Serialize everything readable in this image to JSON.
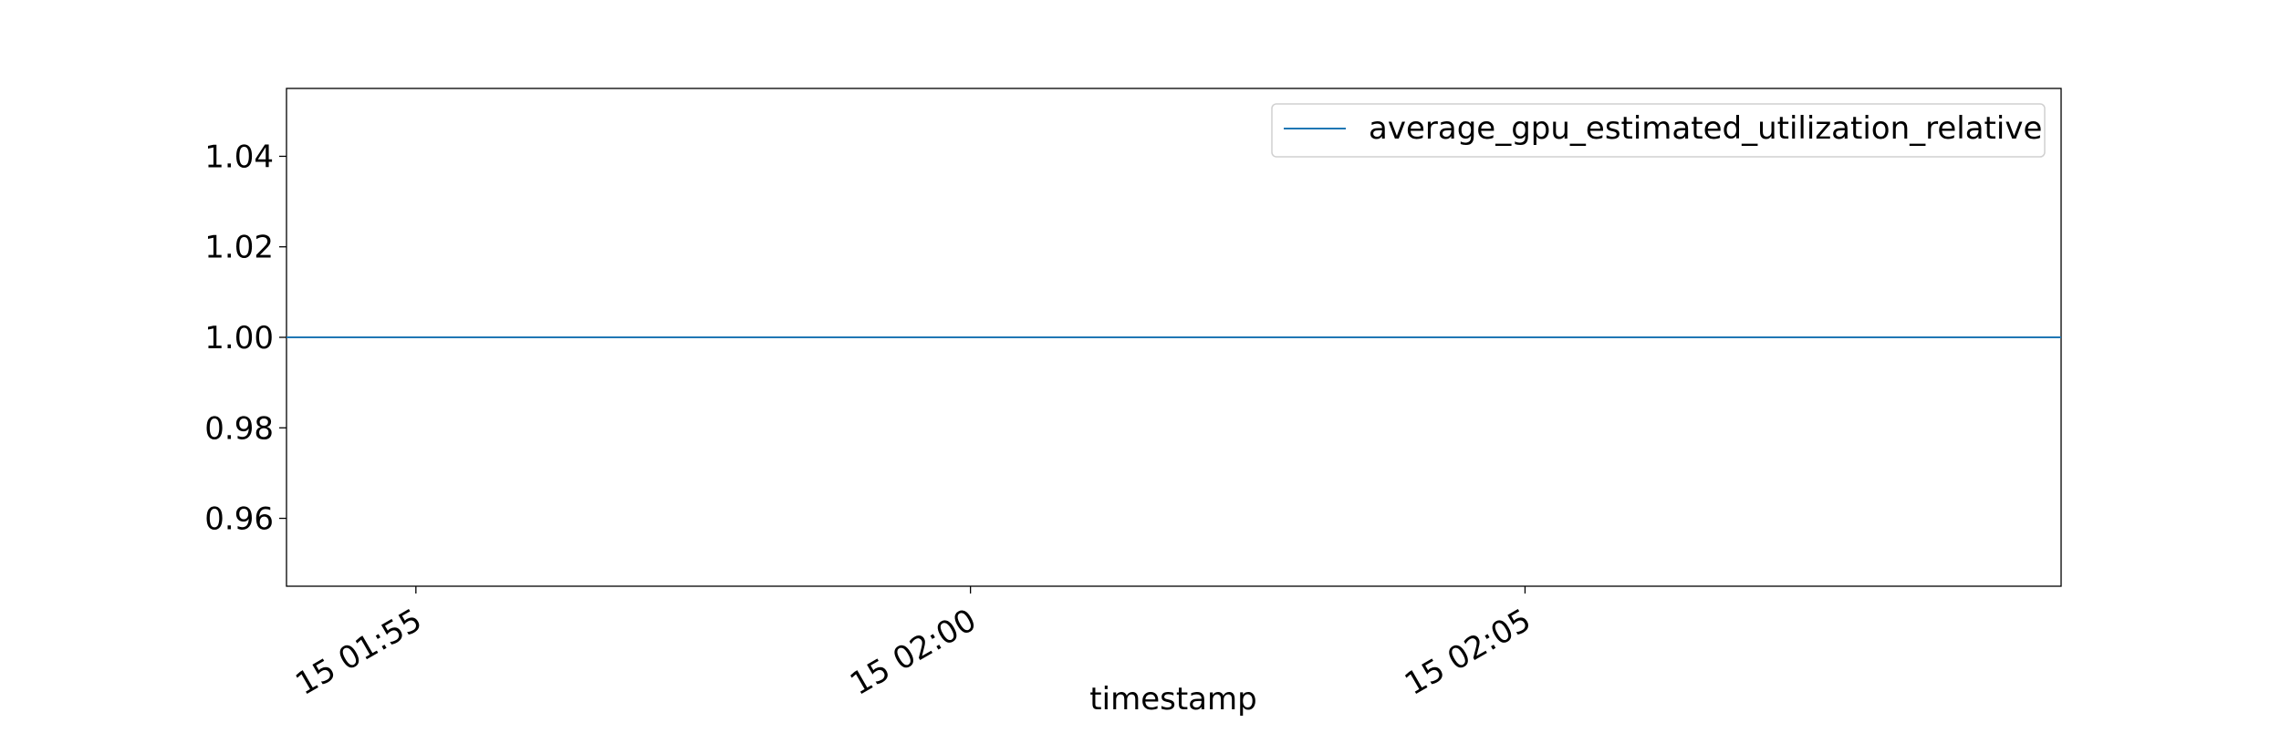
{
  "chart_data": {
    "type": "line",
    "title": "",
    "xlabel": "timestamp",
    "ylabel": "",
    "x_tick_labels": [
      "15 01:55",
      "15 02:00",
      "15 02:05"
    ],
    "y_tick_labels": [
      "0.96",
      "0.98",
      "1.00",
      "1.02",
      "1.04"
    ],
    "y_ticks": [
      0.96,
      0.98,
      1.0,
      1.02,
      1.04
    ],
    "ylim": [
      0.945,
      1.055
    ],
    "xlim": [
      "15 01:53:50",
      "15 02:09:50"
    ],
    "grid": false,
    "legend_position": "top-right",
    "series": [
      {
        "name": "average_gpu_estimated_utilization_relative",
        "color": "#1f77b4",
        "x": [
          "15 01:53:50",
          "15 02:09:50"
        ],
        "values": [
          1.0,
          1.0
        ]
      }
    ]
  }
}
